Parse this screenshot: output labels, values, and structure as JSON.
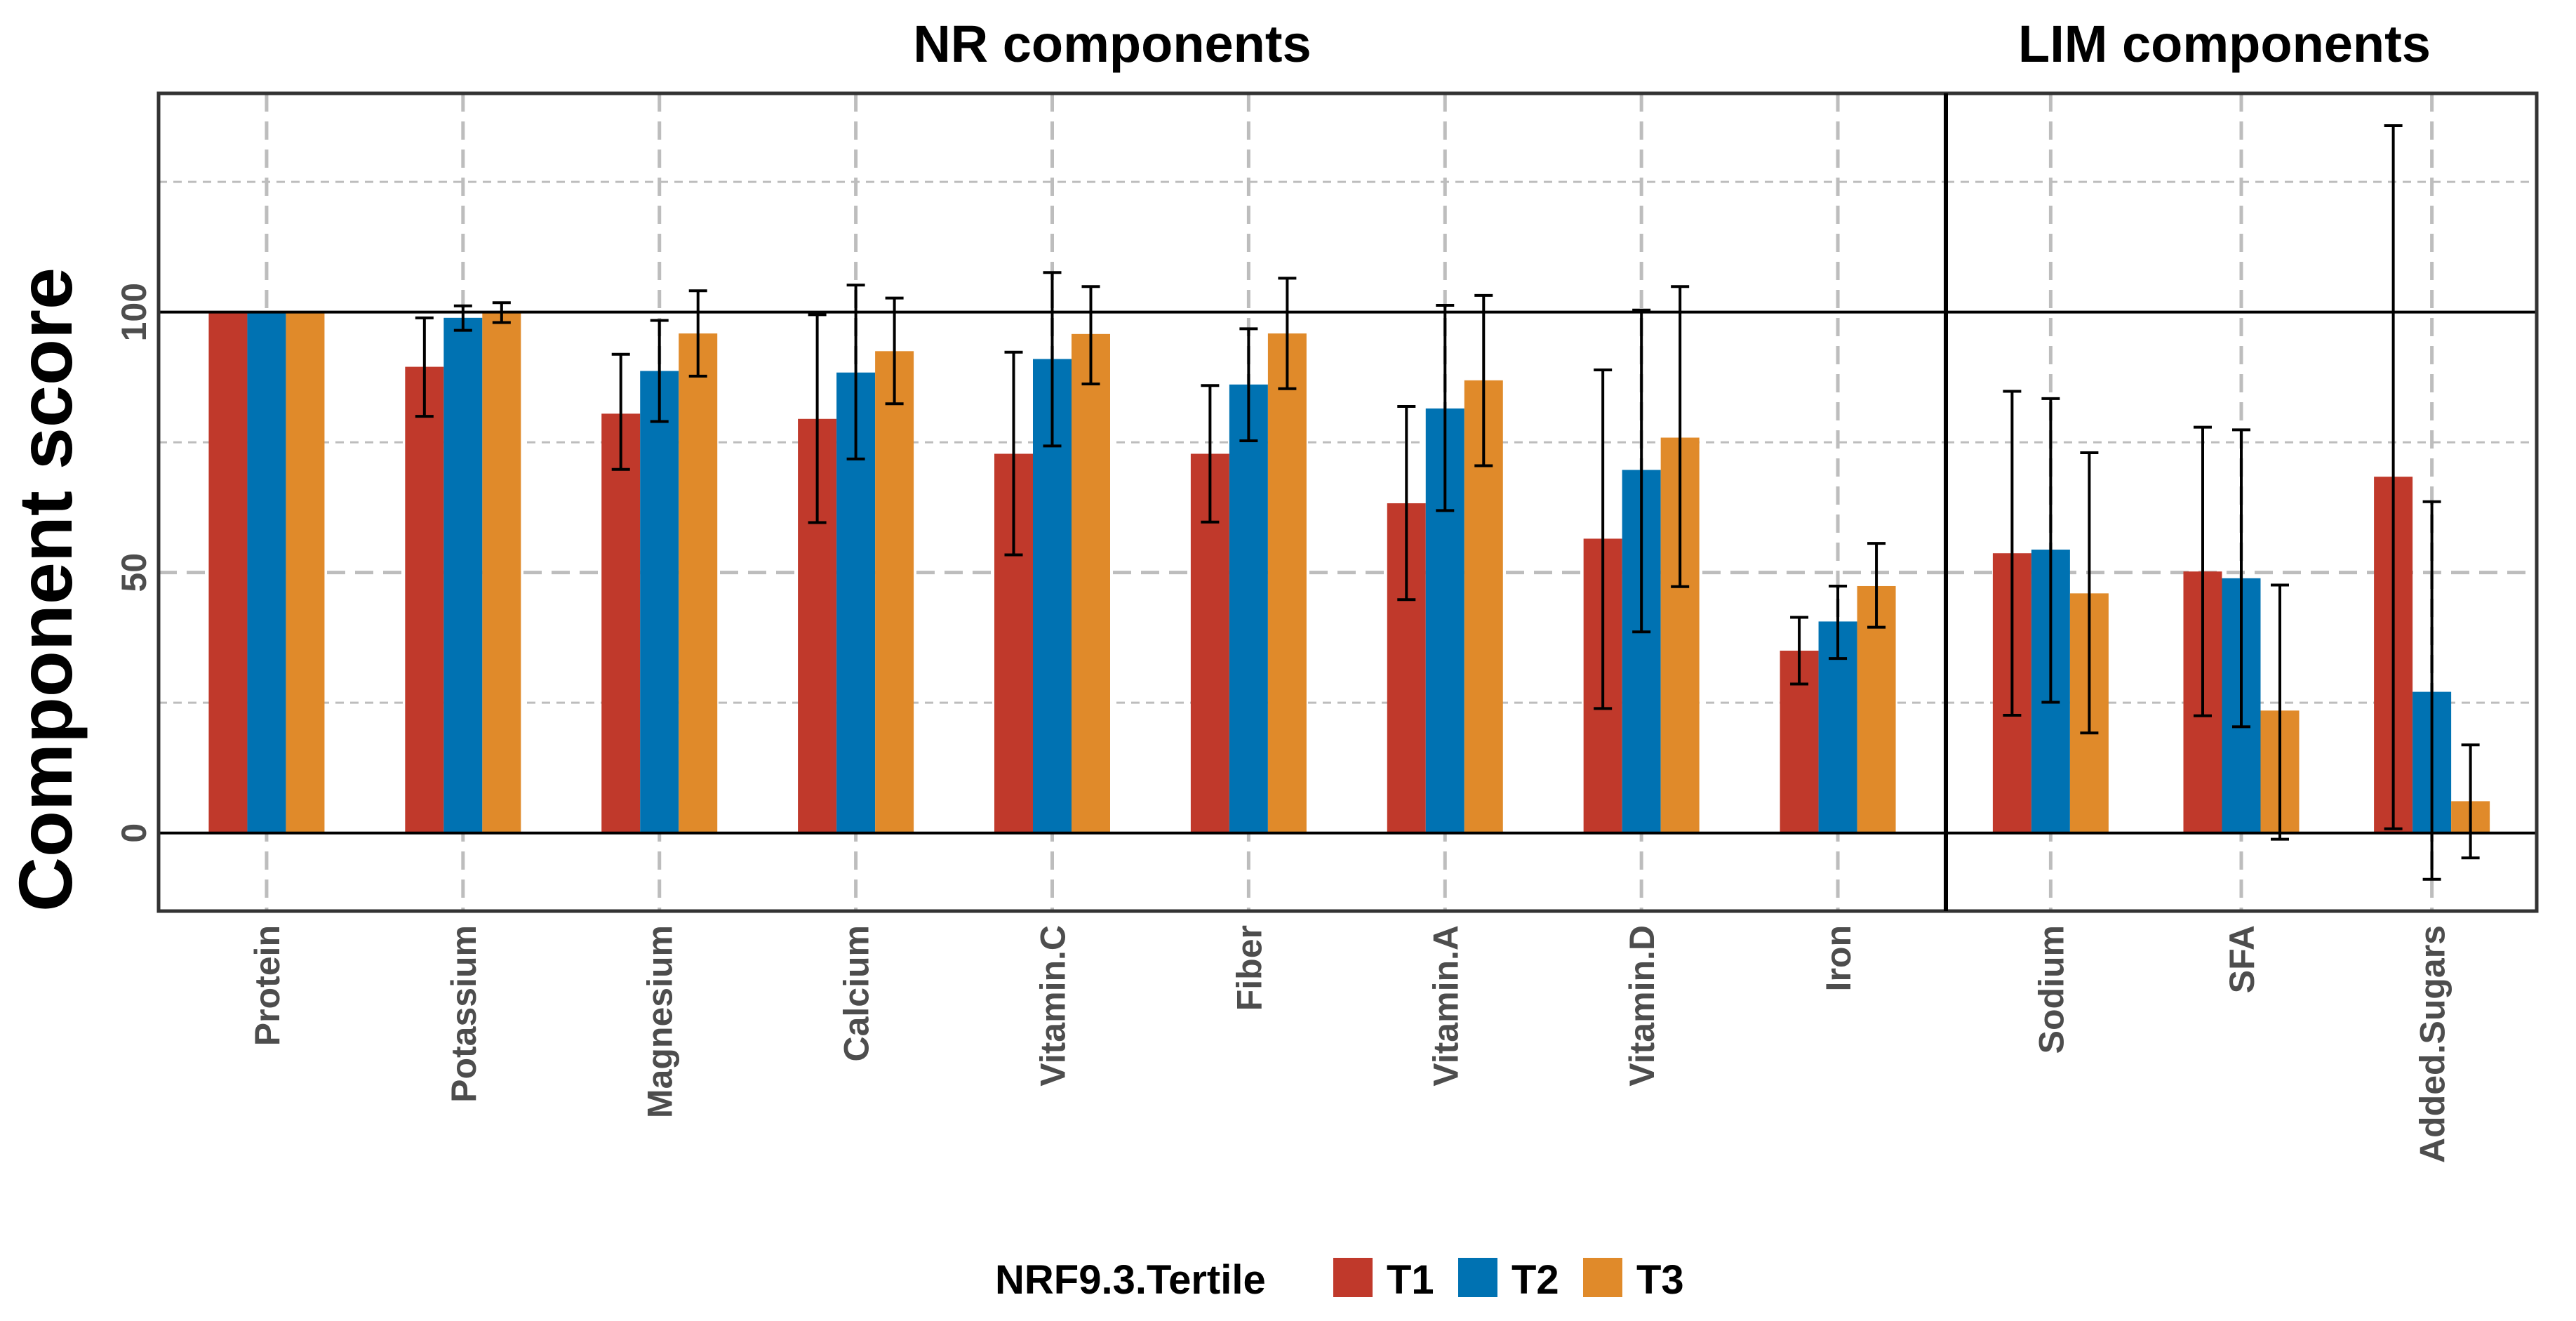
{
  "chart_data": {
    "type": "bar",
    "ylabel": "Component score",
    "xlabel": "",
    "ylim": [
      -15,
      142
    ],
    "yticks": [
      0,
      50,
      100
    ],
    "panels": [
      {
        "title": "NR components",
        "categories": [
          "Protein",
          "Potassium",
          "Magnesium",
          "Calcium",
          "Vitamin.C",
          "Fiber",
          "Vitamin.A",
          "Vitamin.D",
          "Iron"
        ]
      },
      {
        "title": "LIM components",
        "categories": [
          "Sodium",
          "SFA",
          "Added.Sugars"
        ]
      }
    ],
    "legend": {
      "title": "NRF9.3.Tertile",
      "position": "bottom"
    },
    "series": [
      {
        "name": "T1",
        "color": "#C0392B",
        "values": [
          100,
          89.5,
          80.5,
          79.5,
          72.8,
          72.8,
          63.3,
          56.5,
          35,
          53.7,
          50.2,
          68.4
        ],
        "err_low": [
          100,
          80,
          69.8,
          59.6,
          53.4,
          59.7,
          44.8,
          23.9,
          28.6,
          22.6,
          22.5,
          0.8
        ],
        "err_high": [
          100,
          98.9,
          91.9,
          99.5,
          92.3,
          85.9,
          81.9,
          88.9,
          41.4,
          84.8,
          77.9,
          135.8
        ]
      },
      {
        "name": "T2",
        "color": "#0072B2",
        "values": [
          100,
          98.9,
          88.7,
          88.4,
          91,
          86.1,
          81.5,
          69.7,
          40.6,
          54.4,
          48.9,
          27.1
        ],
        "err_low": [
          100,
          96.5,
          79,
          71.8,
          74.3,
          75.3,
          61.9,
          38.6,
          33.5,
          25.1,
          20.4,
          -8.9
        ],
        "err_high": [
          100,
          101.2,
          98.4,
          105.2,
          107.6,
          96.8,
          101.3,
          100.4,
          47.4,
          83.4,
          77.4,
          63.6
        ]
      },
      {
        "name": "T3",
        "color": "#E08A2A",
        "values": [
          100,
          100,
          95.9,
          92.5,
          95.8,
          95.9,
          86.9,
          75.9,
          47.4,
          46,
          23.5,
          6.1
        ],
        "err_low": [
          100,
          98,
          87.7,
          82.4,
          86.2,
          85.3,
          70.5,
          47.3,
          39.5,
          19.2,
          -1.2,
          -4.8
        ],
        "err_high": [
          100,
          101.8,
          104.1,
          102.7,
          104.9,
          106.5,
          103.2,
          104.9,
          55.6,
          73,
          47.6,
          16.9
        ]
      }
    ]
  }
}
